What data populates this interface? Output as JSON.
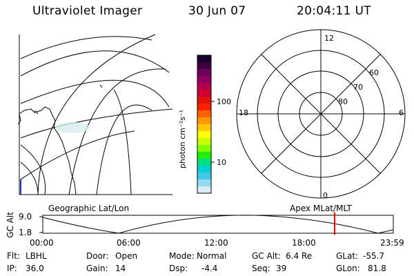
{
  "header": {
    "title": "Ultraviolet Imager",
    "date": "30 Jun 07",
    "time": "20:04:11 UT"
  },
  "colorbar": {
    "unit_label": "photon cm⁻²s⁻¹",
    "ticks": [
      "100",
      "10"
    ],
    "colors": [
      "#1a0033",
      "#400040",
      "#6a0060",
      "#900060",
      "#b0004a",
      "#d00030",
      "#e01010",
      "#ff2000",
      "#ff6000",
      "#ff9800",
      "#ffc800",
      "#ffff00",
      "#c8ff00",
      "#80ff00",
      "#20f000",
      "#00e080",
      "#00d0d0",
      "#40c8e8",
      "#90dcee",
      "#d8eef4"
    ]
  },
  "polar_plot": {
    "labels_mlt": [
      "12",
      "18",
      "6",
      "0"
    ],
    "labels_lat": [
      "60",
      "70",
      "80"
    ]
  },
  "panel_labels": {
    "left": "Geographic Lat/Lon",
    "right": "Apex MLat/MLT"
  },
  "alt_plot": {
    "axis_label": "GC Alt",
    "y_ticks": [
      "9.0",
      "1.8"
    ],
    "x_ticks": [
      "00:00",
      "06:00",
      "12:00",
      "18:00",
      "23:59"
    ],
    "marker_color": "#e00000"
  },
  "status": {
    "row1": [
      {
        "label": "Flt:",
        "value": "LBHL"
      },
      {
        "label": "Door:",
        "value": "Open"
      },
      {
        "label": "Mode:",
        "value": "Normal"
      },
      {
        "label": "GC Alt:",
        "value": "6.4 Re"
      },
      {
        "label": "GLat:",
        "value": "-55.7"
      }
    ],
    "row2": [
      {
        "label": "IP:",
        "value": "36.0"
      },
      {
        "label": "Gain:",
        "value": "14"
      },
      {
        "label": "Dsp:",
        "value": "-4.4"
      },
      {
        "label": "Seq:",
        "value": "39"
      },
      {
        "label": "GLon:",
        "value": "81.8"
      }
    ]
  }
}
